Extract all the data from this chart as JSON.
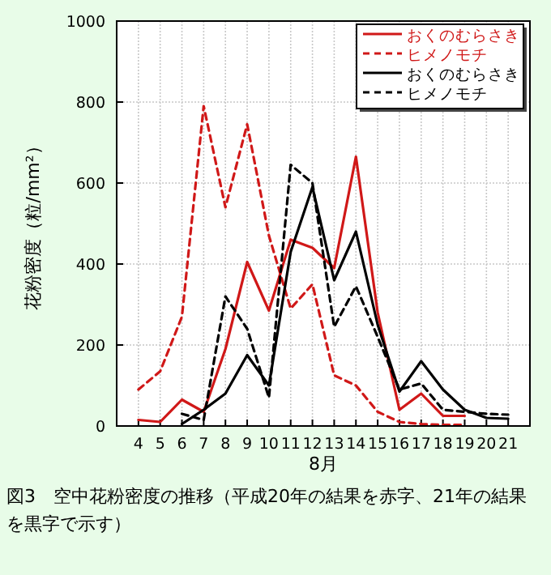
{
  "chart_data": {
    "type": "line",
    "xlabel": "8月",
    "ylabel": "花粉密度（粒/mm²）",
    "x": [
      4,
      5,
      6,
      7,
      8,
      9,
      10,
      11,
      12,
      13,
      14,
      15,
      16,
      17,
      18,
      19,
      20,
      21
    ],
    "xlim": [
      3,
      22
    ],
    "xticks": [
      4,
      5,
      6,
      7,
      8,
      9,
      10,
      11,
      12,
      13,
      14,
      15,
      16,
      17,
      18,
      19,
      20,
      21
    ],
    "ylim": [
      0,
      1000
    ],
    "yticks": [
      0,
      200,
      400,
      600,
      800,
      1000
    ],
    "grid": true,
    "legend": "top right",
    "series": [
      {
        "name": "おくのむらさき",
        "color": "#d01818",
        "line_style": "solid",
        "values": [
          15,
          10,
          65,
          35,
          190,
          405,
          285,
          460,
          440,
          390,
          665,
          280,
          40,
          80,
          25,
          25,
          null,
          null
        ]
      },
      {
        "name": "ヒメノモチ",
        "color": "#d01818",
        "line_style": "dashed",
        "values": [
          90,
          135,
          270,
          790,
          540,
          745,
          470,
          290,
          350,
          125,
          100,
          35,
          10,
          5,
          3,
          3,
          null,
          null
        ]
      },
      {
        "name": "おくのむらさき",
        "color": "#000000",
        "line_style": "solid",
        "values": [
          null,
          null,
          5,
          40,
          80,
          175,
          100,
          430,
          590,
          360,
          480,
          250,
          85,
          160,
          90,
          40,
          20,
          18
        ]
      },
      {
        "name": "ヒメノモチ",
        "color": "#000000",
        "line_style": "dashed",
        "values": [
          null,
          null,
          30,
          15,
          320,
          240,
          70,
          645,
          600,
          245,
          345,
          220,
          90,
          105,
          40,
          35,
          30,
          28
        ]
      }
    ],
    "annotations": [
      "図3　空中花粉密度の推移（平成20年の結果を赤字、21年の結果を黒字で示す）"
    ]
  }
}
